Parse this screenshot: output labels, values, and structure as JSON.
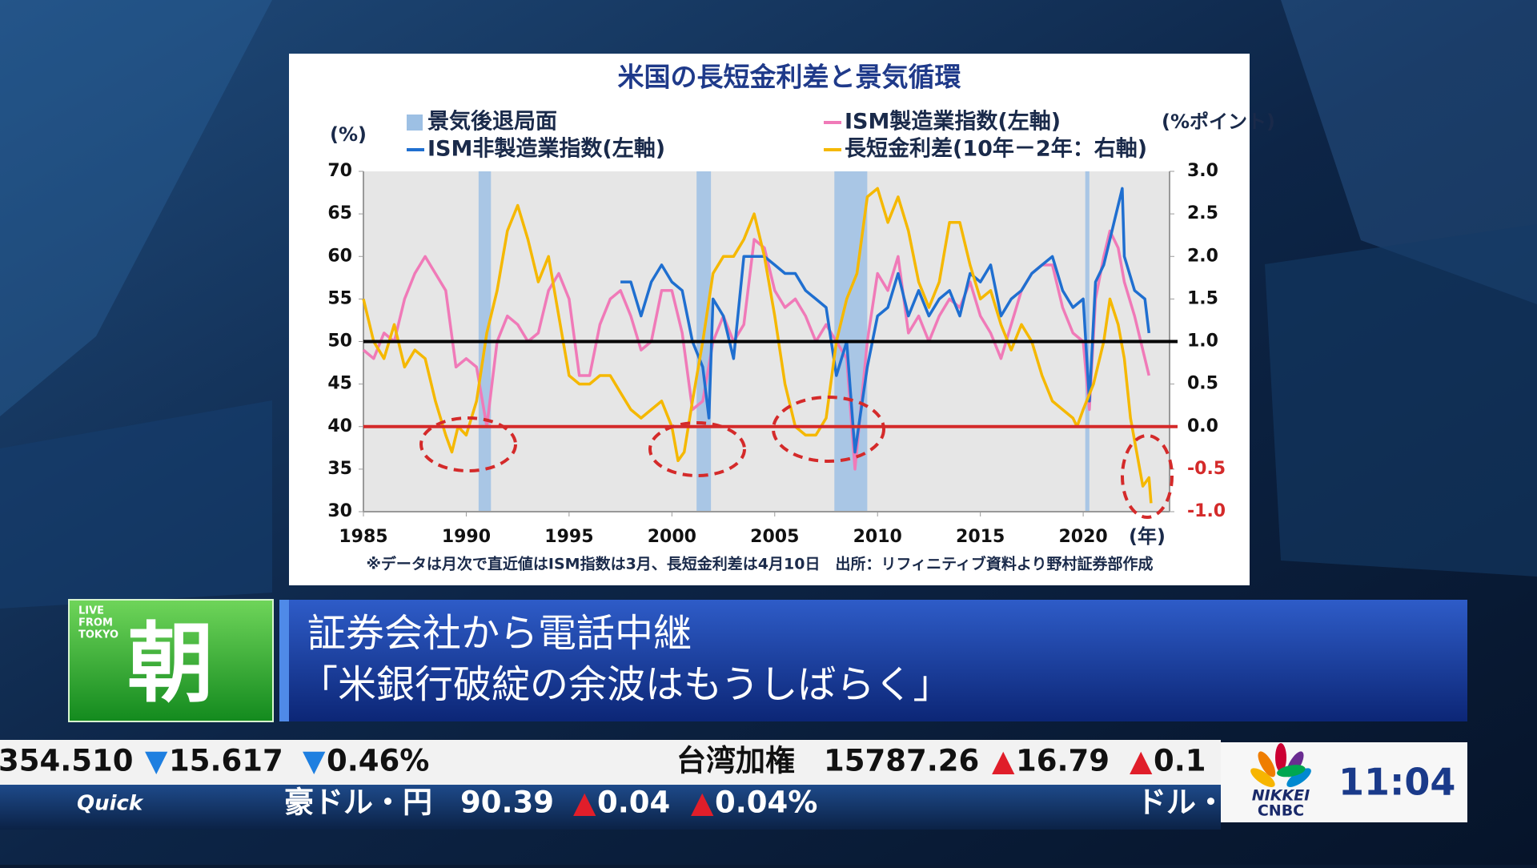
{
  "chart_data": {
    "type": "line",
    "title": "米国の長短金利差と景気循環",
    "y_label": "(%)",
    "y2_label": "(%ポイント)",
    "x_label": "(年)",
    "note": "※データは月次で直近値はISM指数は3月、長短金利差は4月10日　出所：リフィニティブ資料より野村証券部作成",
    "xlim": [
      1985,
      2024.2
    ],
    "xticks": [
      1985,
      1990,
      1995,
      2000,
      2005,
      2010,
      2015,
      2020
    ],
    "ylim": [
      30,
      70
    ],
    "yticks": [
      30,
      35,
      40,
      45,
      50,
      55,
      60,
      65,
      70
    ],
    "y2lim": [
      -1,
      3
    ],
    "y2ticks": [
      {
        "value": -1,
        "label": "-1.0"
      },
      -0.5,
      {
        "value": 0,
        "label": "0.0"
      },
      0.5,
      {
        "value": 1,
        "label": "1.0"
      },
      1.5,
      {
        "value": 2,
        "label": "2.0"
      },
      2.5,
      {
        "value": 3,
        "label": "3.0"
      }
    ],
    "legend": "top",
    "recession": {
      "name": "景気後退局面",
      "color": "#9dc0e4",
      "ranges": [
        [
          1990.6,
          1991.2
        ],
        [
          2001.2,
          2001.9
        ],
        [
          2007.9,
          2009.5
        ],
        [
          2020.1,
          2020.3
        ]
      ]
    },
    "reference_lines": [
      {
        "axis": "y",
        "value": 50,
        "color": "#000000"
      },
      {
        "axis": "y2",
        "value": 0,
        "color": "#d42a2a"
      }
    ],
    "series": [
      {
        "name": "ISM製造業指数(左軸)",
        "color": "#f07ab8",
        "axis": "y",
        "x": [
          1985,
          1985.5,
          1986,
          1986.5,
          1987,
          1987.5,
          1988,
          1988.5,
          1989,
          1989.5,
          1990,
          1990.5,
          1991,
          1991.5,
          1992,
          1992.5,
          1993,
          1993.5,
          1994,
          1994.5,
          1995,
          1995.5,
          1996,
          1996.5,
          1997,
          1997.5,
          1998,
          1998.5,
          1999,
          1999.5,
          2000,
          2000.5,
          2001,
          2001.5,
          2002,
          2002.5,
          2003,
          2003.5,
          2004,
          2004.5,
          2005,
          2005.5,
          2006,
          2006.5,
          2007,
          2007.5,
          2008,
          2008.5,
          2008.9,
          2009.5,
          2010,
          2010.5,
          2011,
          2011.5,
          2012,
          2012.5,
          2013,
          2013.5,
          2014,
          2014.5,
          2015,
          2015.5,
          2016,
          2016.5,
          2017,
          2017.5,
          2018,
          2018.5,
          2019,
          2019.5,
          2020,
          2020.3,
          2020.6,
          2021,
          2021.3,
          2021.7,
          2022,
          2022.5,
          2023,
          2023.2
        ],
        "values": [
          49,
          48,
          51,
          50,
          55,
          58,
          60,
          58,
          56,
          47,
          48,
          47,
          40,
          50,
          53,
          52,
          50,
          51,
          56,
          58,
          55,
          46,
          46,
          52,
          55,
          56,
          53,
          49,
          50,
          56,
          56,
          51,
          42,
          43,
          50,
          53,
          50,
          52,
          62,
          61,
          56,
          54,
          55,
          53,
          50,
          52,
          50,
          48,
          35,
          50,
          58,
          56,
          60,
          51,
          53,
          50,
          53,
          55,
          54,
          57,
          53,
          51,
          48,
          52,
          56,
          58,
          59,
          59,
          54,
          51,
          50,
          42,
          55,
          60,
          63,
          61,
          57,
          53,
          48,
          46
        ]
      },
      {
        "name": "ISM非製造業指数(左軸)",
        "color": "#1f6fd0",
        "axis": "y",
        "x": [
          1997.5,
          1998,
          1998.5,
          1999,
          1999.5,
          2000,
          2000.5,
          2001,
          2001.5,
          2001.8,
          2002,
          2002.5,
          2003,
          2003.5,
          2004,
          2004.5,
          2005,
          2005.5,
          2006,
          2006.5,
          2007,
          2007.5,
          2008,
          2008.5,
          2008.9,
          2009.5,
          2010,
          2010.5,
          2011,
          2011.5,
          2012,
          2012.5,
          2013,
          2013.5,
          2014,
          2014.5,
          2015,
          2015.5,
          2016,
          2016.5,
          2017,
          2017.5,
          2018,
          2018.5,
          2019,
          2019.5,
          2020,
          2020.3,
          2020.6,
          2021,
          2021.5,
          2021.9,
          2022,
          2022.5,
          2023,
          2023.2
        ],
        "values": [
          57,
          57,
          53,
          57,
          59,
          57,
          56,
          50,
          47,
          41,
          55,
          53,
          48,
          60,
          60,
          60,
          59,
          58,
          58,
          56,
          55,
          54,
          46,
          50,
          37,
          47,
          53,
          54,
          58,
          53,
          56,
          53,
          55,
          56,
          53,
          58,
          57,
          59,
          53,
          55,
          56,
          58,
          59,
          60,
          56,
          54,
          55,
          43,
          57,
          59,
          64,
          68,
          60,
          56,
          55,
          51
        ]
      },
      {
        "name": "長短金利差(10年－2年：右軸)",
        "color": "#f5b800",
        "axis": "y2",
        "x": [
          1985,
          1985.5,
          1986,
          1986.5,
          1987,
          1987.5,
          1988,
          1988.5,
          1989,
          1989.3,
          1989.6,
          1990,
          1990.5,
          1991,
          1991.5,
          1992,
          1992.5,
          1993,
          1993.5,
          1994,
          1994.5,
          1995,
          1995.5,
          1996,
          1996.5,
          1997,
          1997.5,
          1998,
          1998.5,
          1999,
          1999.5,
          2000,
          2000.3,
          2000.6,
          2001,
          2001.5,
          2002,
          2002.5,
          2003,
          2003.5,
          2004,
          2004.5,
          2005,
          2005.5,
          2006,
          2006.5,
          2007,
          2007.5,
          2008,
          2008.5,
          2009,
          2009.5,
          2010,
          2010.5,
          2011,
          2011.5,
          2012,
          2012.5,
          2013,
          2013.5,
          2014,
          2014.5,
          2015,
          2015.5,
          2016,
          2016.5,
          2017,
          2017.5,
          2018,
          2018.5,
          2019,
          2019.5,
          2019.7,
          2020,
          2020.5,
          2021,
          2021.3,
          2021.7,
          2022,
          2022.3,
          2022.6,
          2022.9,
          2023.2,
          2023.3
        ],
        "values": [
          1.5,
          1.0,
          0.8,
          1.2,
          0.7,
          0.9,
          0.8,
          0.3,
          -0.1,
          -0.3,
          0.0,
          -0.1,
          0.3,
          1.1,
          1.6,
          2.3,
          2.6,
          2.2,
          1.7,
          2.0,
          1.3,
          0.6,
          0.5,
          0.5,
          0.6,
          0.6,
          0.4,
          0.2,
          0.1,
          0.2,
          0.3,
          0.0,
          -0.4,
          -0.3,
          0.3,
          1.0,
          1.8,
          2.0,
          2.0,
          2.2,
          2.5,
          2.0,
          1.3,
          0.5,
          0.0,
          -0.1,
          -0.1,
          0.1,
          1.0,
          1.5,
          1.8,
          2.7,
          2.8,
          2.4,
          2.7,
          2.3,
          1.7,
          1.4,
          1.7,
          2.4,
          2.4,
          1.9,
          1.5,
          1.6,
          1.2,
          0.9,
          1.2,
          1.0,
          0.6,
          0.3,
          0.2,
          0.1,
          0.0,
          0.2,
          0.5,
          1.0,
          1.5,
          1.2,
          0.8,
          0.1,
          -0.3,
          -0.7,
          -0.6,
          -0.9
        ]
      }
    ]
  },
  "banner": {
    "live": [
      "LIVE",
      "FROM",
      "TOKYO"
    ],
    "program": "朝",
    "headline": [
      "証券会社から電話中継",
      "「米銀行破綻の余波はもうしばらく」"
    ]
  },
  "ticker": {
    "top": [
      {
        "text": "354.510"
      },
      {
        "arrow": "▼",
        "text": "15.617"
      },
      {
        "arrow": "▼",
        "text": "0.46%"
      },
      {
        "text": "台湾加権"
      },
      {
        "text": "15787.26"
      },
      {
        "arrow": "▲",
        "text": "16.79"
      },
      {
        "arrow": "▲",
        "text": "0.1"
      }
    ],
    "source": "Quick",
    "bottom": [
      {
        "text": "豪ドル・円"
      },
      {
        "text": "90.39"
      },
      {
        "arrow": "▲",
        "text": "0.04"
      },
      {
        "arrow": "▲",
        "text": "0.04%"
      },
      {
        "text": "ドル・"
      }
    ]
  },
  "logo": {
    "line1": "NIKKEI",
    "line2": "CNBC",
    "time": "11:04"
  }
}
